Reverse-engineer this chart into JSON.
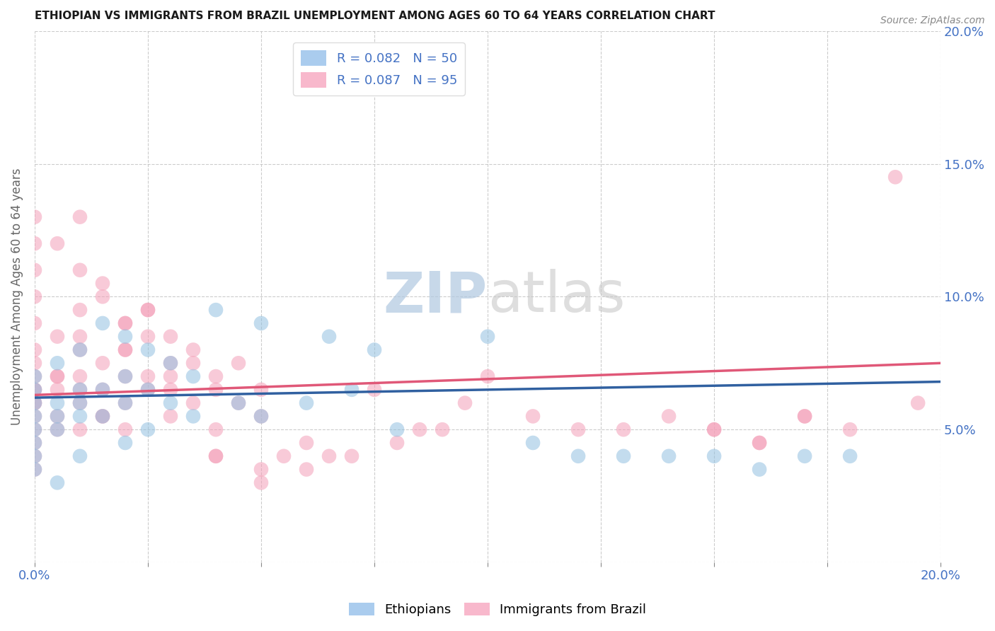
{
  "title": "ETHIOPIAN VS IMMIGRANTS FROM BRAZIL UNEMPLOYMENT AMONG AGES 60 TO 64 YEARS CORRELATION CHART",
  "source_text": "Source: ZipAtlas.com",
  "ylabel": "Unemployment Among Ages 60 to 64 years",
  "xlim": [
    0.0,
    0.2
  ],
  "ylim": [
    0.0,
    0.2
  ],
  "series1_color": "#92c0e0",
  "series2_color": "#f4a0b8",
  "series1_line_color": "#3060a0",
  "series2_line_color": "#e05878",
  "watermark_zip": "ZIP",
  "watermark_atlas": "atlas",
  "ethiopians_x": [
    0.0,
    0.0,
    0.0,
    0.0,
    0.0,
    0.0,
    0.0,
    0.0,
    0.005,
    0.005,
    0.005,
    0.005,
    0.005,
    0.01,
    0.01,
    0.01,
    0.01,
    0.01,
    0.015,
    0.015,
    0.015,
    0.02,
    0.02,
    0.02,
    0.02,
    0.025,
    0.025,
    0.025,
    0.03,
    0.03,
    0.035,
    0.035,
    0.04,
    0.045,
    0.05,
    0.05,
    0.06,
    0.065,
    0.07,
    0.075,
    0.08,
    0.1,
    0.11,
    0.12,
    0.13,
    0.14,
    0.15,
    0.16,
    0.17,
    0.18
  ],
  "ethiopians_y": [
    0.06,
    0.065,
    0.055,
    0.05,
    0.045,
    0.04,
    0.035,
    0.07,
    0.075,
    0.06,
    0.055,
    0.05,
    0.03,
    0.08,
    0.065,
    0.06,
    0.055,
    0.04,
    0.09,
    0.065,
    0.055,
    0.085,
    0.07,
    0.06,
    0.045,
    0.08,
    0.065,
    0.05,
    0.075,
    0.06,
    0.07,
    0.055,
    0.095,
    0.06,
    0.09,
    0.055,
    0.06,
    0.085,
    0.065,
    0.08,
    0.05,
    0.085,
    0.045,
    0.04,
    0.04,
    0.04,
    0.04,
    0.035,
    0.04,
    0.04
  ],
  "brazil_x": [
    0.0,
    0.0,
    0.0,
    0.0,
    0.0,
    0.0,
    0.0,
    0.0,
    0.0,
    0.0,
    0.0,
    0.0,
    0.0,
    0.0,
    0.0,
    0.0,
    0.005,
    0.005,
    0.005,
    0.005,
    0.005,
    0.01,
    0.01,
    0.01,
    0.01,
    0.01,
    0.01,
    0.015,
    0.015,
    0.015,
    0.02,
    0.02,
    0.02,
    0.02,
    0.025,
    0.025,
    0.025,
    0.03,
    0.03,
    0.03,
    0.035,
    0.035,
    0.04,
    0.04,
    0.04,
    0.045,
    0.045,
    0.05,
    0.05,
    0.05,
    0.055,
    0.06,
    0.065,
    0.07,
    0.075,
    0.08,
    0.085,
    0.09,
    0.095,
    0.1,
    0.11,
    0.12,
    0.13,
    0.14,
    0.15,
    0.16,
    0.17,
    0.18,
    0.19,
    0.195,
    0.15,
    0.16,
    0.17,
    0.04,
    0.05,
    0.06,
    0.02,
    0.025,
    0.03,
    0.01,
    0.015,
    0.02,
    0.005,
    0.01,
    0.015,
    0.0,
    0.005,
    0.01,
    0.015,
    0.02,
    0.025,
    0.03,
    0.035,
    0.04
  ],
  "brazil_y": [
    0.065,
    0.06,
    0.055,
    0.05,
    0.045,
    0.075,
    0.07,
    0.065,
    0.04,
    0.08,
    0.12,
    0.11,
    0.09,
    0.1,
    0.13,
    0.035,
    0.085,
    0.07,
    0.065,
    0.055,
    0.05,
    0.095,
    0.085,
    0.07,
    0.065,
    0.06,
    0.05,
    0.065,
    0.055,
    0.075,
    0.09,
    0.08,
    0.07,
    0.05,
    0.095,
    0.085,
    0.07,
    0.075,
    0.065,
    0.055,
    0.08,
    0.06,
    0.07,
    0.065,
    0.05,
    0.075,
    0.06,
    0.065,
    0.055,
    0.03,
    0.04,
    0.035,
    0.04,
    0.04,
    0.065,
    0.045,
    0.05,
    0.05,
    0.06,
    0.07,
    0.055,
    0.05,
    0.05,
    0.055,
    0.05,
    0.045,
    0.055,
    0.05,
    0.145,
    0.06,
    0.05,
    0.045,
    0.055,
    0.04,
    0.035,
    0.045,
    0.08,
    0.095,
    0.085,
    0.11,
    0.1,
    0.09,
    0.12,
    0.13,
    0.105,
    0.06,
    0.07,
    0.08,
    0.055,
    0.06,
    0.065,
    0.07,
    0.075,
    0.04
  ]
}
